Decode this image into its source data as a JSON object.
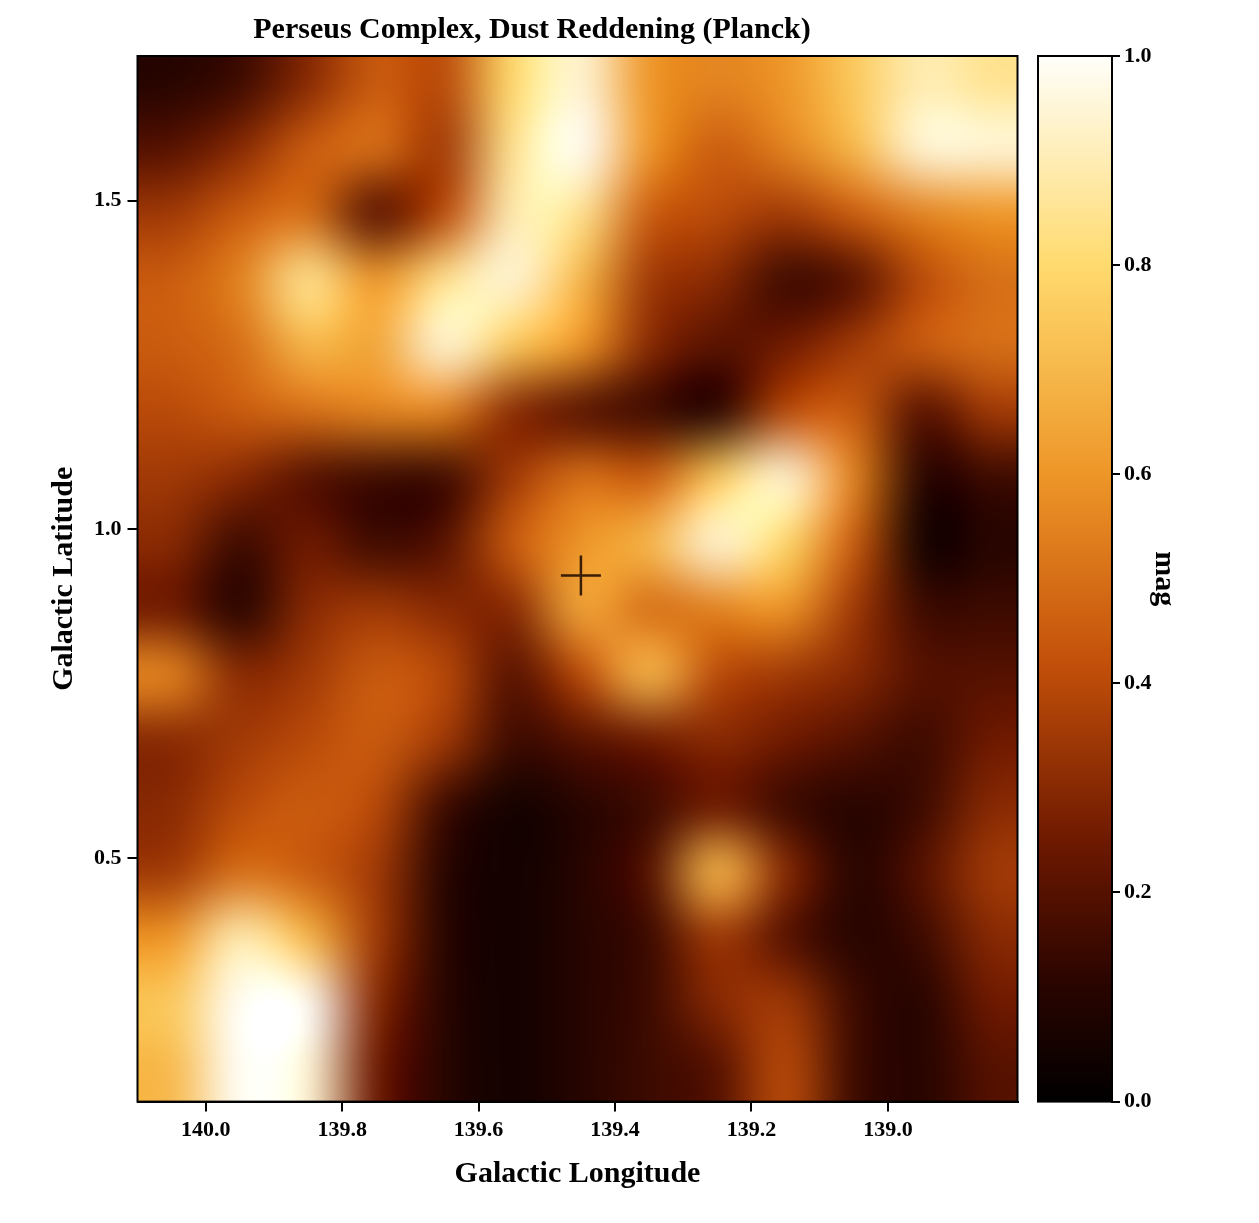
{
  "chart_data": {
    "type": "heatmap",
    "title": "Perseus Complex, Dust Reddening (Planck)",
    "x_label": "Galactic Longitude",
    "y_label": "Galactic Latitude",
    "xlim": [
      140.1,
      138.81
    ],
    "ylim": [
      0.13,
      1.72
    ],
    "xticks": [
      {
        "value": 140,
        "label": "140.0"
      },
      139.8,
      139.6,
      139.4,
      139.2,
      {
        "value": 139,
        "label": "139.0"
      }
    ],
    "yticks": [
      0.5,
      {
        "value": 1,
        "label": "1.0"
      },
      1.5
    ],
    "grid": false,
    "x": [
      140.05,
      139.95,
      139.85,
      139.75,
      139.65,
      139.55,
      139.45,
      139.35,
      139.25,
      139.15,
      139.05,
      138.95,
      138.85
    ],
    "y": [
      1.68,
      1.58,
      1.48,
      1.38,
      1.28,
      1.18,
      1.08,
      0.98,
      0.88,
      0.78,
      0.68,
      0.58,
      0.48,
      0.38,
      0.28,
      0.18
    ],
    "cells": [
      [
        0.1,
        0.15,
        0.3,
        0.45,
        0.4,
        0.8,
        0.95,
        0.6,
        0.55,
        0.6,
        0.75,
        0.9,
        0.85
      ],
      [
        0.2,
        0.3,
        0.45,
        0.5,
        0.35,
        0.85,
        1.0,
        0.6,
        0.45,
        0.55,
        0.7,
        0.95,
        0.95
      ],
      [
        0.35,
        0.45,
        0.5,
        0.2,
        0.4,
        0.9,
        0.85,
        0.45,
        0.4,
        0.35,
        0.45,
        0.55,
        0.6
      ],
      [
        0.45,
        0.55,
        0.85,
        0.6,
        0.85,
        0.95,
        0.7,
        0.35,
        0.3,
        0.15,
        0.2,
        0.4,
        0.5
      ],
      [
        0.45,
        0.5,
        0.7,
        0.65,
        0.95,
        0.75,
        0.6,
        0.3,
        0.2,
        0.25,
        0.35,
        0.45,
        0.5
      ],
      [
        0.4,
        0.45,
        0.5,
        0.55,
        0.55,
        0.3,
        0.2,
        0.15,
        0.1,
        0.4,
        0.45,
        0.2,
        0.35
      ],
      [
        0.35,
        0.3,
        0.2,
        0.15,
        0.15,
        0.35,
        0.5,
        0.45,
        0.75,
        0.95,
        0.55,
        0.1,
        0.15
      ],
      [
        0.3,
        0.15,
        0.25,
        0.15,
        0.2,
        0.45,
        0.6,
        0.7,
        0.95,
        0.8,
        0.45,
        0.05,
        0.1
      ],
      [
        0.25,
        0.1,
        0.3,
        0.35,
        0.3,
        0.3,
        0.65,
        0.5,
        0.55,
        0.6,
        0.35,
        0.15,
        0.15
      ],
      [
        0.55,
        0.3,
        0.35,
        0.45,
        0.4,
        0.2,
        0.4,
        0.7,
        0.4,
        0.35,
        0.3,
        0.2,
        0.2
      ],
      [
        0.3,
        0.35,
        0.4,
        0.45,
        0.35,
        0.15,
        0.2,
        0.25,
        0.3,
        0.25,
        0.2,
        0.15,
        0.25
      ],
      [
        0.3,
        0.4,
        0.45,
        0.4,
        0.15,
        0.05,
        0.1,
        0.15,
        0.25,
        0.15,
        0.1,
        0.15,
        0.3
      ],
      [
        0.35,
        0.5,
        0.45,
        0.35,
        0.1,
        0.05,
        0.1,
        0.2,
        0.7,
        0.3,
        0.1,
        0.2,
        0.35
      ],
      [
        0.6,
        0.9,
        0.7,
        0.35,
        0.1,
        0.05,
        0.1,
        0.15,
        0.35,
        0.2,
        0.1,
        0.15,
        0.3
      ],
      [
        0.75,
        1.0,
        1.0,
        0.3,
        0.1,
        0.05,
        0.1,
        0.15,
        0.3,
        0.35,
        0.15,
        0.1,
        0.25
      ],
      [
        0.7,
        1.0,
        0.95,
        0.25,
        0.1,
        0.05,
        0.1,
        0.15,
        0.2,
        0.4,
        0.15,
        0.1,
        0.2
      ]
    ],
    "colorbar_range": [
      0,
      1
    ],
    "colorbar_ticks": [
      {
        "value": 0,
        "label": "0.0"
      },
      0.2,
      0.4,
      0.6,
      0.8,
      {
        "value": 1,
        "label": "1.0"
      }
    ],
    "colorbar_label": "mag",
    "series": [
      {
        "type": "scatter",
        "marker": "cross",
        "color": "#3a1d05",
        "x": [
          139.45
        ],
        "y": [
          0.93
        ]
      }
    ]
  }
}
